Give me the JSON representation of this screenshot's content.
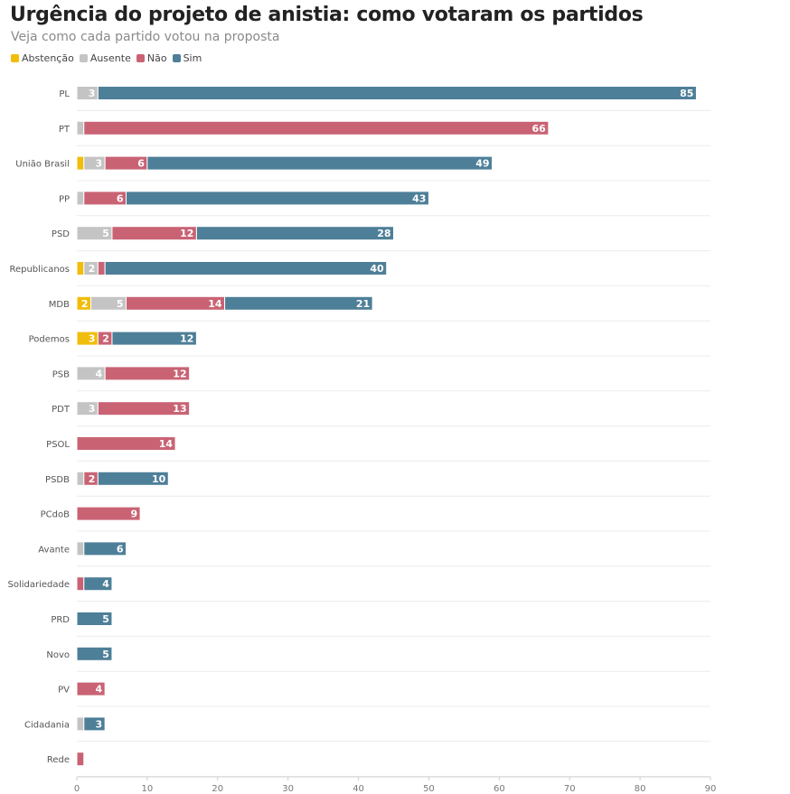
{
  "chart_data": {
    "type": "bar",
    "orientation": "horizontal",
    "stacked": true,
    "title": "Urgência do projeto de anistia: como votaram os partidos",
    "subtitle": "Veja como cada partido votou na proposta",
    "legend_position": "top-left",
    "grid": true,
    "xlim": [
      0,
      90
    ],
    "xticks": [
      0,
      10,
      20,
      30,
      40,
      50,
      60,
      70,
      80,
      90
    ],
    "categories": [
      "PL",
      "PT",
      "União Brasil",
      "PP",
      "PSD",
      "Republicanos",
      "MDB",
      "Podemos",
      "PSB",
      "PDT",
      "PSOL",
      "PSDB",
      "PCdoB",
      "Avante",
      "Solidariedade",
      "PRD",
      "Novo",
      "PV",
      "Cidadania",
      "Rede"
    ],
    "series": [
      {
        "name": "Abstenção",
        "color": "#f0bd0b",
        "values": [
          0,
          0,
          1,
          0,
          0,
          1,
          2,
          3,
          0,
          0,
          0,
          0,
          0,
          0,
          0,
          0,
          0,
          0,
          0,
          0
        ]
      },
      {
        "name": "Ausente",
        "color": "#c4c4c4",
        "values": [
          3,
          1,
          3,
          1,
          5,
          2,
          5,
          0,
          4,
          3,
          0,
          1,
          0,
          1,
          0,
          0,
          0,
          0,
          1,
          0
        ]
      },
      {
        "name": "Não",
        "color": "#c96374",
        "values": [
          0,
          66,
          6,
          6,
          12,
          1,
          14,
          2,
          12,
          13,
          14,
          2,
          9,
          0,
          1,
          0,
          0,
          4,
          0,
          1
        ]
      },
      {
        "name": "Sim",
        "color": "#4e7f98",
        "values": [
          85,
          0,
          49,
          43,
          28,
          40,
          21,
          12,
          0,
          0,
          0,
          10,
          0,
          6,
          4,
          5,
          5,
          0,
          3,
          0
        ]
      }
    ]
  }
}
